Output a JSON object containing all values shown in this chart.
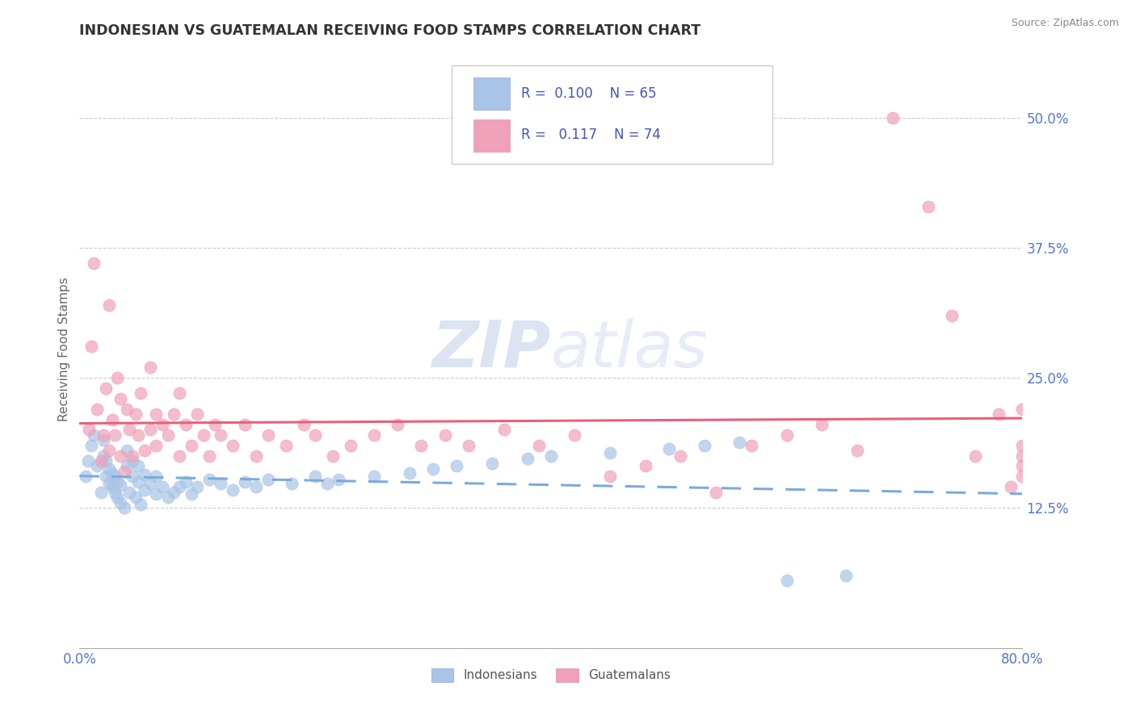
{
  "title": "INDONESIAN VS GUATEMALAN RECEIVING FOOD STAMPS CORRELATION CHART",
  "source": "Source: ZipAtlas.com",
  "ylabel": "Receiving Food Stamps",
  "ytick_labels": [
    "12.5%",
    "25.0%",
    "37.5%",
    "50.0%"
  ],
  "ytick_values": [
    0.125,
    0.25,
    0.375,
    0.5
  ],
  "xlim": [
    0.0,
    0.8
  ],
  "ylim": [
    -0.01,
    0.565
  ],
  "color_indonesian": "#a8c4e6",
  "color_guatemalan": "#f0a0b8",
  "color_line_indonesian": "#7aabdc",
  "color_line_guatemalan": "#e8607a",
  "color_tick_labels": "#5577cc",
  "watermark_zip": "ZIP",
  "watermark_atlas": "atlas",
  "watermark_color": "#dce4f2",
  "legend_text1": "R =  0.100    N = 65",
  "legend_text2": "R =   0.117    N = 74",
  "indonesian_x": [
    0.005,
    0.007,
    0.01,
    0.012,
    0.015,
    0.018,
    0.02,
    0.02,
    0.022,
    0.022,
    0.025,
    0.025,
    0.028,
    0.028,
    0.03,
    0.03,
    0.032,
    0.032,
    0.035,
    0.035,
    0.038,
    0.04,
    0.04,
    0.042,
    0.045,
    0.045,
    0.048,
    0.05,
    0.05,
    0.052,
    0.055,
    0.055,
    0.06,
    0.065,
    0.065,
    0.07,
    0.075,
    0.08,
    0.085,
    0.09,
    0.095,
    0.1,
    0.11,
    0.12,
    0.13,
    0.14,
    0.15,
    0.16,
    0.18,
    0.2,
    0.21,
    0.22,
    0.25,
    0.28,
    0.3,
    0.32,
    0.35,
    0.38,
    0.4,
    0.45,
    0.5,
    0.53,
    0.56,
    0.6,
    0.65
  ],
  "indonesian_y": [
    0.155,
    0.17,
    0.185,
    0.195,
    0.165,
    0.14,
    0.175,
    0.19,
    0.155,
    0.17,
    0.148,
    0.162,
    0.145,
    0.158,
    0.14,
    0.155,
    0.135,
    0.15,
    0.13,
    0.147,
    0.125,
    0.165,
    0.18,
    0.14,
    0.155,
    0.17,
    0.135,
    0.15,
    0.165,
    0.128,
    0.142,
    0.157,
    0.148,
    0.138,
    0.155,
    0.145,
    0.135,
    0.14,
    0.145,
    0.15,
    0.138,
    0.145,
    0.152,
    0.148,
    0.142,
    0.15,
    0.145,
    0.152,
    0.148,
    0.155,
    0.148,
    0.152,
    0.155,
    0.158,
    0.162,
    0.165,
    0.168,
    0.172,
    0.175,
    0.178,
    0.182,
    0.185,
    0.188,
    0.055,
    0.06
  ],
  "guatemalan_x": [
    0.008,
    0.01,
    0.012,
    0.015,
    0.018,
    0.02,
    0.022,
    0.025,
    0.025,
    0.028,
    0.03,
    0.032,
    0.035,
    0.035,
    0.038,
    0.04,
    0.042,
    0.045,
    0.048,
    0.05,
    0.052,
    0.055,
    0.06,
    0.06,
    0.065,
    0.065,
    0.07,
    0.075,
    0.08,
    0.085,
    0.085,
    0.09,
    0.095,
    0.1,
    0.105,
    0.11,
    0.115,
    0.12,
    0.13,
    0.14,
    0.15,
    0.16,
    0.175,
    0.19,
    0.2,
    0.215,
    0.23,
    0.25,
    0.27,
    0.29,
    0.31,
    0.33,
    0.36,
    0.39,
    0.42,
    0.45,
    0.48,
    0.51,
    0.54,
    0.57,
    0.6,
    0.63,
    0.66,
    0.69,
    0.72,
    0.74,
    0.76,
    0.78,
    0.79,
    0.8,
    0.8,
    0.8,
    0.8,
    0.8
  ],
  "guatemalan_y": [
    0.2,
    0.28,
    0.36,
    0.22,
    0.17,
    0.195,
    0.24,
    0.18,
    0.32,
    0.21,
    0.195,
    0.25,
    0.175,
    0.23,
    0.16,
    0.22,
    0.2,
    0.175,
    0.215,
    0.195,
    0.235,
    0.18,
    0.26,
    0.2,
    0.215,
    0.185,
    0.205,
    0.195,
    0.215,
    0.175,
    0.235,
    0.205,
    0.185,
    0.215,
    0.195,
    0.175,
    0.205,
    0.195,
    0.185,
    0.205,
    0.175,
    0.195,
    0.185,
    0.205,
    0.195,
    0.175,
    0.185,
    0.195,
    0.205,
    0.185,
    0.195,
    0.185,
    0.2,
    0.185,
    0.195,
    0.155,
    0.165,
    0.175,
    0.14,
    0.185,
    0.195,
    0.205,
    0.18,
    0.5,
    0.415,
    0.31,
    0.175,
    0.215,
    0.145,
    0.155,
    0.165,
    0.175,
    0.185,
    0.22
  ]
}
